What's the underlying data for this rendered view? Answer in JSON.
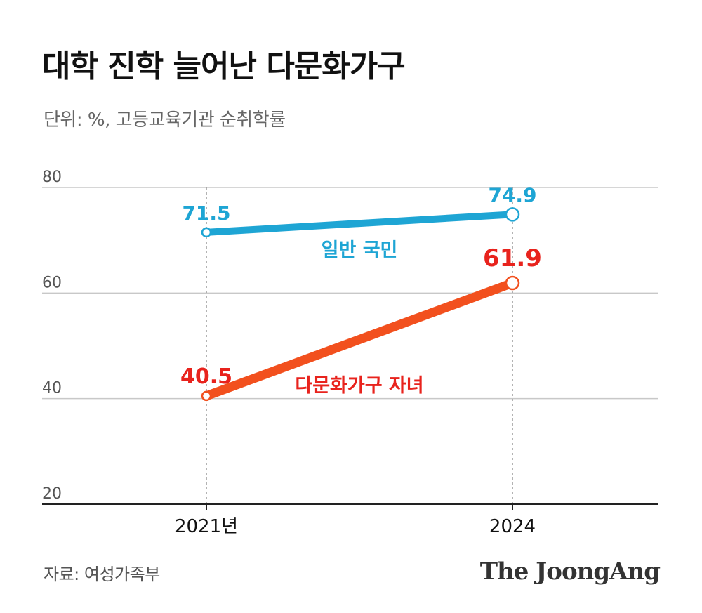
{
  "header": {
    "title": "대학 진학 늘어난 다문화가구",
    "subtitle": "단위: %, 고등교육기관 순취학률"
  },
  "footer": {
    "source": "자료: 여성가족부",
    "logo": "The JoongAng"
  },
  "chart_data": {
    "type": "line",
    "categories": [
      "2021년",
      "2024"
    ],
    "yticks": [
      20,
      40,
      60,
      80
    ],
    "ylim": [
      20,
      80
    ],
    "grid": true,
    "series": [
      {
        "name": "일반 국민",
        "values": [
          71.5,
          74.9
        ],
        "labels": [
          "71.5",
          "74.9"
        ],
        "color": "#1ea5d4"
      },
      {
        "name": "다문화가구 자녀",
        "values": [
          40.5,
          61.9
        ],
        "labels": [
          "40.5",
          "61.9"
        ],
        "color": "#f2501e",
        "label_color": "#e8231d"
      }
    ]
  }
}
